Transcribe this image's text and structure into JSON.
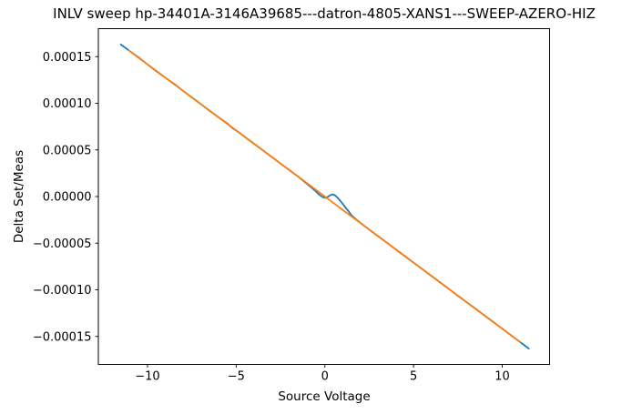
{
  "chart_data": {
    "type": "line",
    "title": "INLV sweep hp-34401A-3146A39685---datron-4805-XANS1---SWEEP-AZERO-HIZ",
    "xlabel": "Source Voltage",
    "ylabel": "Delta Set/Meas",
    "xlim": [
      -12.77,
      12.67
    ],
    "ylim": [
      -0.00018,
      0.00018
    ],
    "grid": false,
    "legend_position": "none",
    "background_color": "#ffffff",
    "frame_color": "#000000",
    "xticks": {
      "values": [
        -10,
        -5,
        0,
        5,
        10
      ],
      "labels": [
        "−10",
        "−5",
        "0",
        "5",
        "10"
      ]
    },
    "yticks": {
      "values": [
        0.00015,
        0.0001,
        5e-05,
        0.0,
        -5e-05,
        -0.0001,
        -0.00015
      ],
      "labels": [
        "0.00015",
        "0.00010",
        "0.00005",
        "0.00000",
        "−0.00005",
        "−0.00010",
        "−0.00015"
      ]
    },
    "series": [
      {
        "name": "blue-line",
        "color": "#1f77b4",
        "x": [
          -11.5,
          -11,
          -10.5,
          -10,
          -9.5,
          -9,
          -8.5,
          -8,
          -7.5,
          -7,
          -6.5,
          -6,
          -5.5,
          -5.25,
          -5,
          -4.5,
          -4,
          -3.5,
          -3,
          -2.5,
          -2,
          -1.5,
          -1,
          -0.75,
          -0.5,
          -0.3,
          -0.15,
          -0.05,
          0.05,
          0.15,
          0.25,
          0.35,
          0.45,
          0.6,
          0.75,
          0.9,
          1.05,
          1.2,
          1.35,
          1.5,
          1.75,
          2,
          2.5,
          3,
          3.5,
          4,
          4.5,
          5,
          5.5,
          6,
          6.5,
          7,
          7.5,
          8,
          8.5,
          9,
          9.5,
          10,
          10.5,
          11,
          11.5
        ],
        "y": [
          0.000163,
          0.0001559,
          0.0001492,
          0.0001417,
          0.0001343,
          0.0001275,
          0.0001209,
          0.0001134,
          0.0001063,
          9.92e-05,
          9.21e-05,
          8.5e-05,
          7.84e-05,
          7.39e-05,
          7.09e-05,
          6.38e-05,
          5.67e-05,
          4.96e-05,
          4.25e-05,
          3.54e-05,
          2.83e-05,
          2.13e-05,
          1.35e-05,
          9.6e-06,
          5.4e-06,
          1.8e-06,
          -3e-07,
          -1.2e-06,
          -1.5e-06,
          -6e-07,
          8e-07,
          1.9e-06,
          2.3e-06,
          9e-07,
          -1.9e-06,
          -5.4e-06,
          -9e-06,
          -1.26e-05,
          -1.61e-05,
          -2e-05,
          -2.43e-05,
          -2.83e-05,
          -3.54e-05,
          -4.25e-05,
          -4.96e-05,
          -5.67e-05,
          -6.38e-05,
          -7.09e-05,
          -7.79e-05,
          -8.5e-05,
          -9.21e-05,
          -9.92e-05,
          -0.0001063,
          -0.0001134,
          -0.0001204,
          -0.0001275,
          -0.0001346,
          -0.0001417,
          -0.0001488,
          -0.0001559,
          -0.000163
        ]
      },
      {
        "name": "orange-line",
        "color": "#ff7f0e",
        "x": [
          -11.05,
          -11,
          -10.5,
          -10,
          -9.5,
          -9,
          -8.5,
          -8,
          -7.5,
          -7,
          -6.5,
          -6,
          -5.5,
          -5,
          -4.5,
          -4,
          -3.5,
          -3,
          -2.5,
          -2,
          -1.5,
          -1,
          -0.5,
          0,
          0.5,
          1,
          1.5,
          2,
          2.5,
          3,
          3.5,
          4,
          4.5,
          5,
          5.5,
          6,
          6.5,
          7,
          7.5,
          8,
          8.5,
          9,
          9.5,
          10,
          10.5,
          11
        ],
        "y": [
          0.0001566,
          0.0001559,
          0.0001488,
          0.0001417,
          0.0001347,
          0.0001276,
          0.0001205,
          0.0001134,
          0.0001063,
          9.92e-05,
          9.21e-05,
          8.5e-05,
          7.8e-05,
          7.09e-05,
          6.38e-05,
          5.67e-05,
          4.96e-05,
          4.25e-05,
          3.54e-05,
          2.83e-05,
          2.13e-05,
          1.42e-05,
          7.1e-06,
          0.0,
          -7.1e-06,
          -1.42e-05,
          -2.13e-05,
          -2.83e-05,
          -3.54e-05,
          -4.25e-05,
          -4.96e-05,
          -5.67e-05,
          -6.38e-05,
          -7.09e-05,
          -7.8e-05,
          -8.5e-05,
          -9.21e-05,
          -9.92e-05,
          -0.0001063,
          -0.0001134,
          -0.0001205,
          -0.0001276,
          -0.0001347,
          -0.0001417,
          -0.0001488,
          -0.0001559
        ]
      }
    ]
  }
}
